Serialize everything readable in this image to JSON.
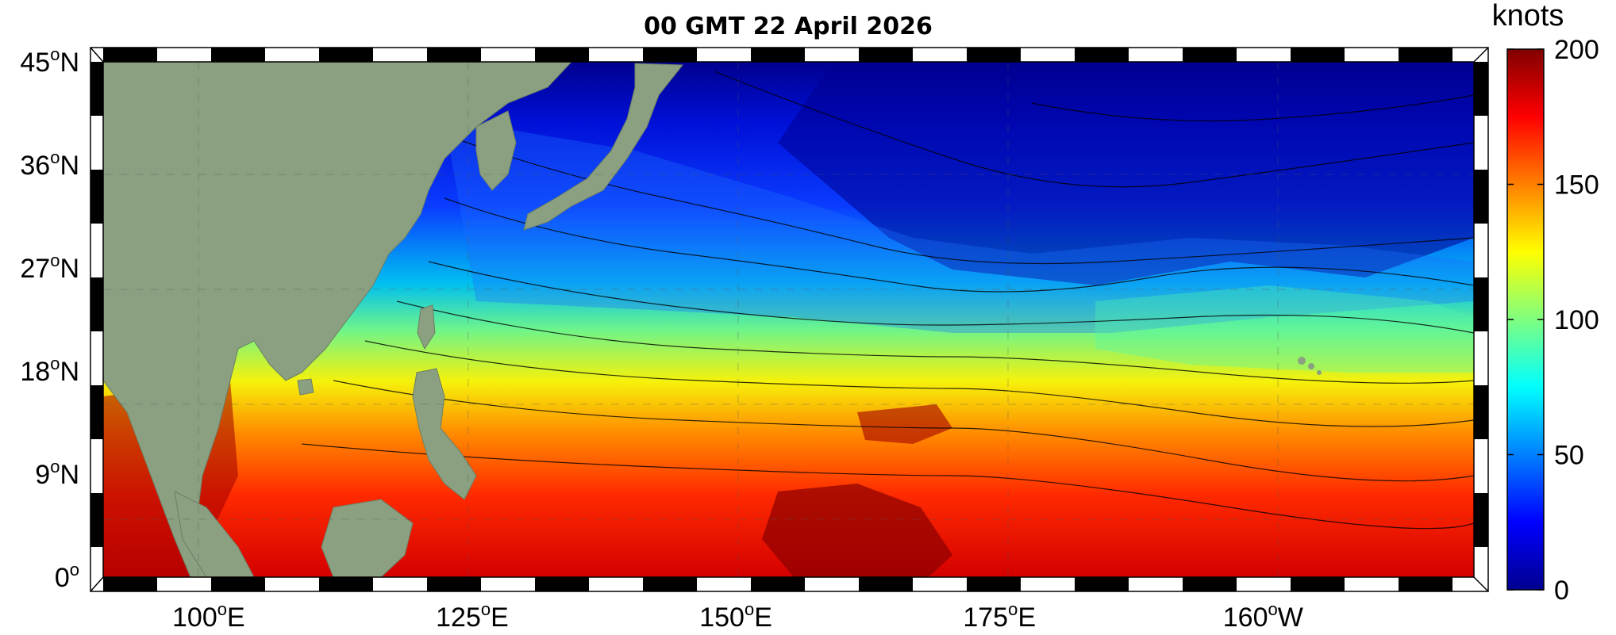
{
  "map": {
    "title": "00 GMT 22 April 2026",
    "lat_ticks": [
      {
        "base": "45",
        "sup": "o",
        "suffix": "N",
        "value": 45
      },
      {
        "base": "36",
        "sup": "o",
        "suffix": "N",
        "value": 36
      },
      {
        "base": "27",
        "sup": "o",
        "suffix": "N",
        "value": 27
      },
      {
        "base": "18",
        "sup": "o",
        "suffix": "N",
        "value": 18
      },
      {
        "base": "9",
        "sup": "o",
        "suffix": "N",
        "value": 9
      },
      {
        "base": "0",
        "sup": "o",
        "suffix": "",
        "value": 0
      }
    ],
    "lon_ticks": [
      {
        "base": "100",
        "sup": "o",
        "suffix": "E",
        "value": 100
      },
      {
        "base": "125",
        "sup": "o",
        "suffix": "E",
        "value": 125
      },
      {
        "base": "150",
        "sup": "o",
        "suffix": "E",
        "value": 150
      },
      {
        "base": "175",
        "sup": "o",
        "suffix": "E",
        "value": 175
      },
      {
        "base": "160",
        "sup": "o",
        "suffix": "W",
        "value": 200
      }
    ],
    "extent": {
      "lon_min": 90,
      "lon_max": 220,
      "lat_min": 0,
      "lat_max": 45
    },
    "colorbar": {
      "units": "knots",
      "min": 0,
      "max": 200,
      "tick_labels": [
        "200",
        "150",
        "100",
        "50",
        "0"
      ],
      "tick_values": [
        200,
        150,
        100,
        50,
        0
      ]
    },
    "colors": {
      "land": "#8aa080",
      "frame_black": "#000000",
      "frame_white": "#ffffff"
    }
  }
}
